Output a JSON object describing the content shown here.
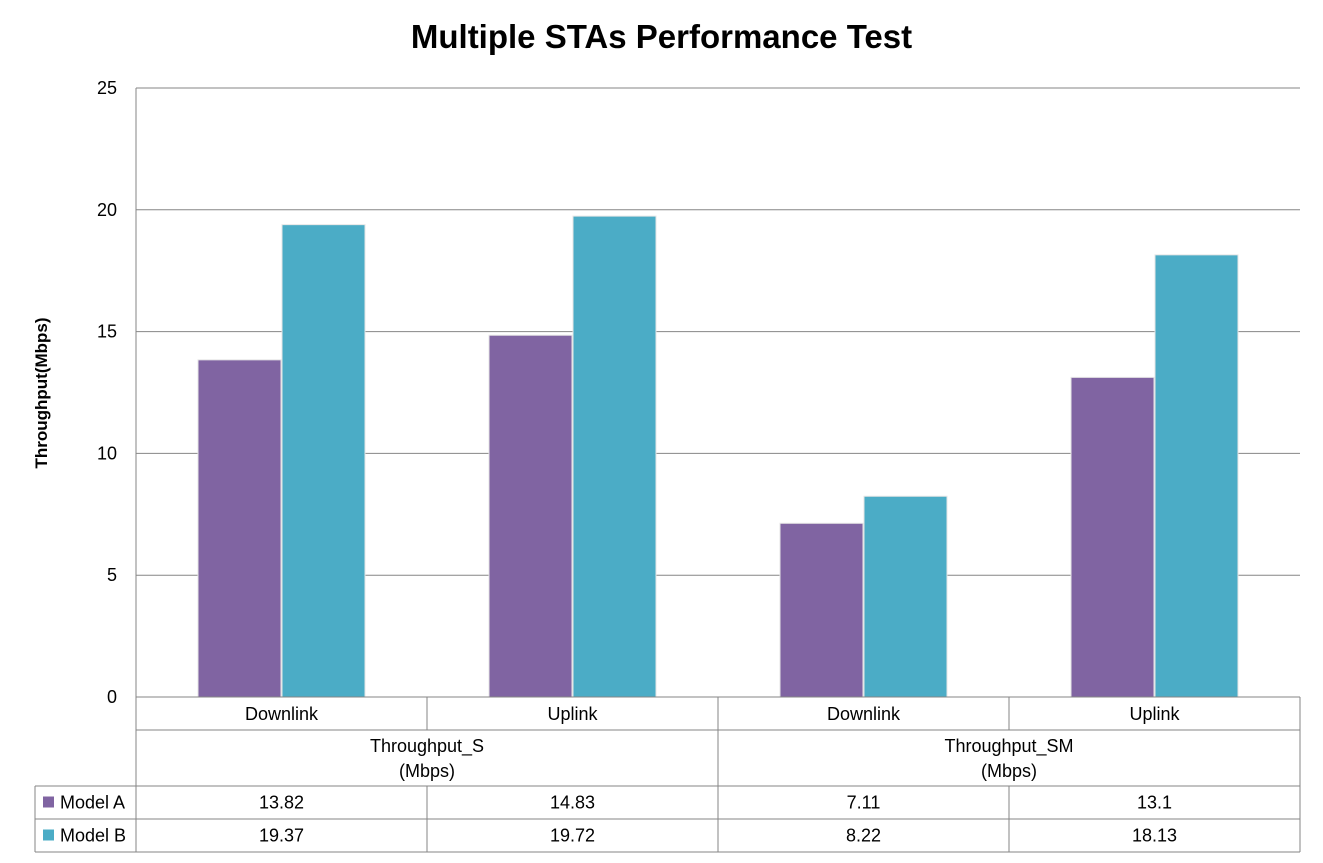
{
  "chart_data": {
    "type": "bar",
    "title": "Multiple STAs Performance Test",
    "ylabel": "Throughput(Mbps)",
    "xlabel": "",
    "ylim": [
      0,
      25
    ],
    "yticks": [
      "0",
      "5",
      "10",
      "15",
      "20",
      "25"
    ],
    "grid": true,
    "legend": "data-table",
    "categories": [
      "Downlink",
      "Uplink",
      "Downlink",
      "Uplink"
    ],
    "groups": [
      {
        "label_line1": "Throughput_S",
        "label_line2": "(Mbps)"
      },
      {
        "label_line1": "Throughput_SM",
        "label_line2": "(Mbps)"
      }
    ],
    "series": [
      {
        "name": "Model A",
        "color": "#8064a2",
        "values": [
          13.82,
          14.83,
          7.11,
          13.1
        ],
        "labels": [
          "13.82",
          "14.83",
          "7.11",
          "13.1"
        ]
      },
      {
        "name": "Model B",
        "color": "#4bacc6",
        "values": [
          19.37,
          19.72,
          8.22,
          18.13
        ],
        "labels": [
          "19.37",
          "19.72",
          "8.22",
          "18.13"
        ]
      }
    ]
  }
}
